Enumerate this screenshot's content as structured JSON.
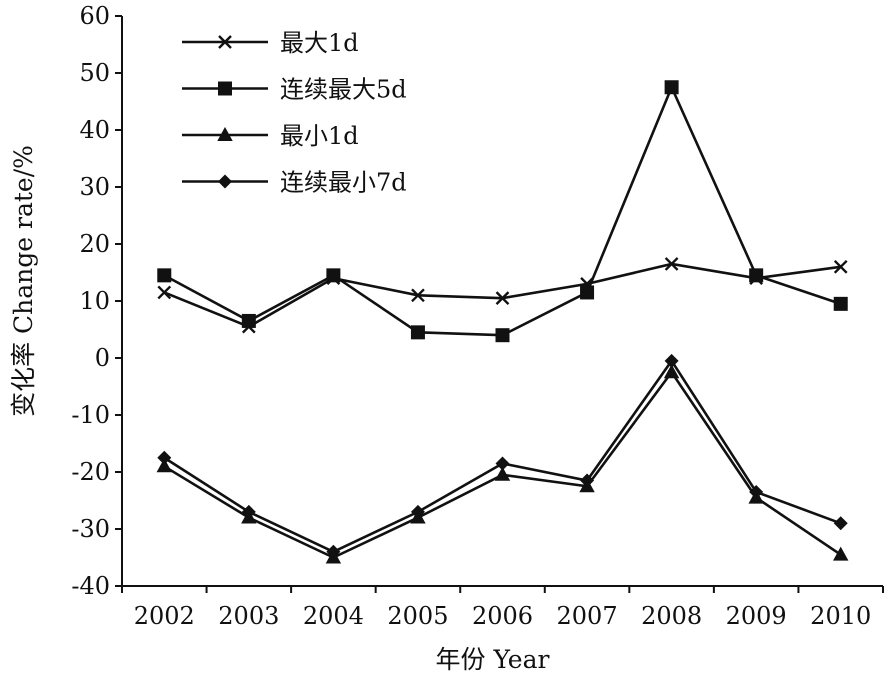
{
  "chart_data": {
    "type": "line",
    "xlabel": "年份 Year",
    "ylabel": "变化率 Change rate/%",
    "categories": [
      "2002",
      "2003",
      "2004",
      "2005",
      "2006",
      "2007",
      "2008",
      "2009",
      "2010"
    ],
    "ylim": [
      -40,
      60
    ],
    "yticks": [
      "60",
      "50",
      "40",
      "30",
      "20",
      "10",
      "0",
      "-10",
      "-20",
      "-30",
      "-40"
    ],
    "ytick_values": [
      60,
      50,
      40,
      30,
      20,
      10,
      0,
      -10,
      -20,
      -30,
      -40
    ],
    "grid": false,
    "legend_position": "top-left",
    "line_color": "#111111",
    "series": [
      {
        "name": "最大1d",
        "marker": "x",
        "values": [
          11.5,
          5.5,
          14,
          11,
          10.5,
          13,
          16.5,
          14,
          16
        ]
      },
      {
        "name": "连续最大5d",
        "marker": "square",
        "values": [
          14.5,
          6.5,
          14.5,
          4.5,
          4,
          11.5,
          47.5,
          14.5,
          9.5
        ]
      },
      {
        "name": "最小1d",
        "marker": "triangle",
        "values": [
          -19,
          -28,
          -35,
          -28,
          -20.5,
          -22.5,
          -2.5,
          -24.5,
          -34.5
        ]
      },
      {
        "name": "连续最小7d",
        "marker": "diamond",
        "values": [
          -17.5,
          -27,
          -34,
          -27,
          -18.5,
          -21.5,
          -0.5,
          -23.5,
          -29
        ]
      }
    ]
  }
}
